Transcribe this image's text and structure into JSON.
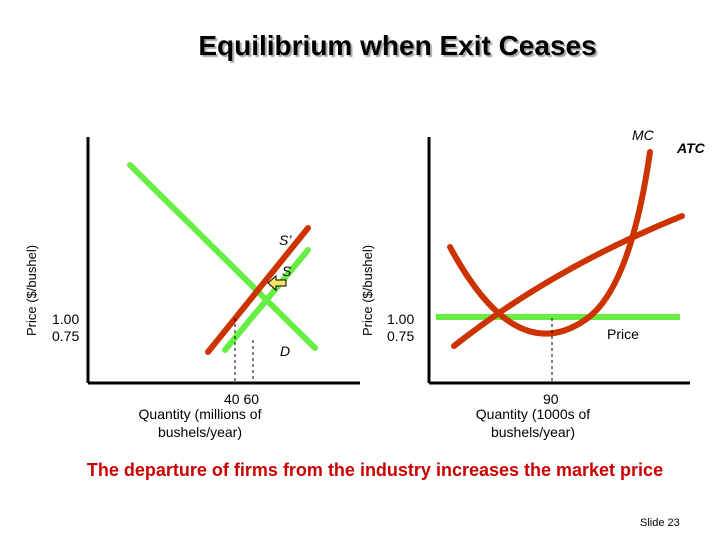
{
  "title": "Equilibrium when Exit Ceases",
  "left_panel": {
    "y_axis_label": "Price ($/bushel)",
    "price_ticks": [
      "1.00",
      "0.75"
    ],
    "quantity_ticks": "40 60",
    "x_axis_label_line1": "Quantity (millions of",
    "x_axis_label_line2": "bushels/year)",
    "curve_labels": {
      "supply_shifted": "S’",
      "supply": "S",
      "demand": "D"
    }
  },
  "right_panel": {
    "y_axis_label": "Price ($/bushel)",
    "price_ticks": [
      "1.00",
      "0.75"
    ],
    "quantity_tick": "90",
    "x_axis_label_line1": "Quantity (1000s of",
    "x_axis_label_line2": "bushels/year)",
    "curve_labels": {
      "mc": "MC",
      "atc": "ATC",
      "price": "Price"
    }
  },
  "caption": "The departure of firms from the industry increases the market price",
  "slide_number": "Slide 23",
  "colors": {
    "curve": "#cc3300",
    "line": "#66ee44",
    "caption": "#cc0000",
    "arrow": "#ffe066"
  }
}
